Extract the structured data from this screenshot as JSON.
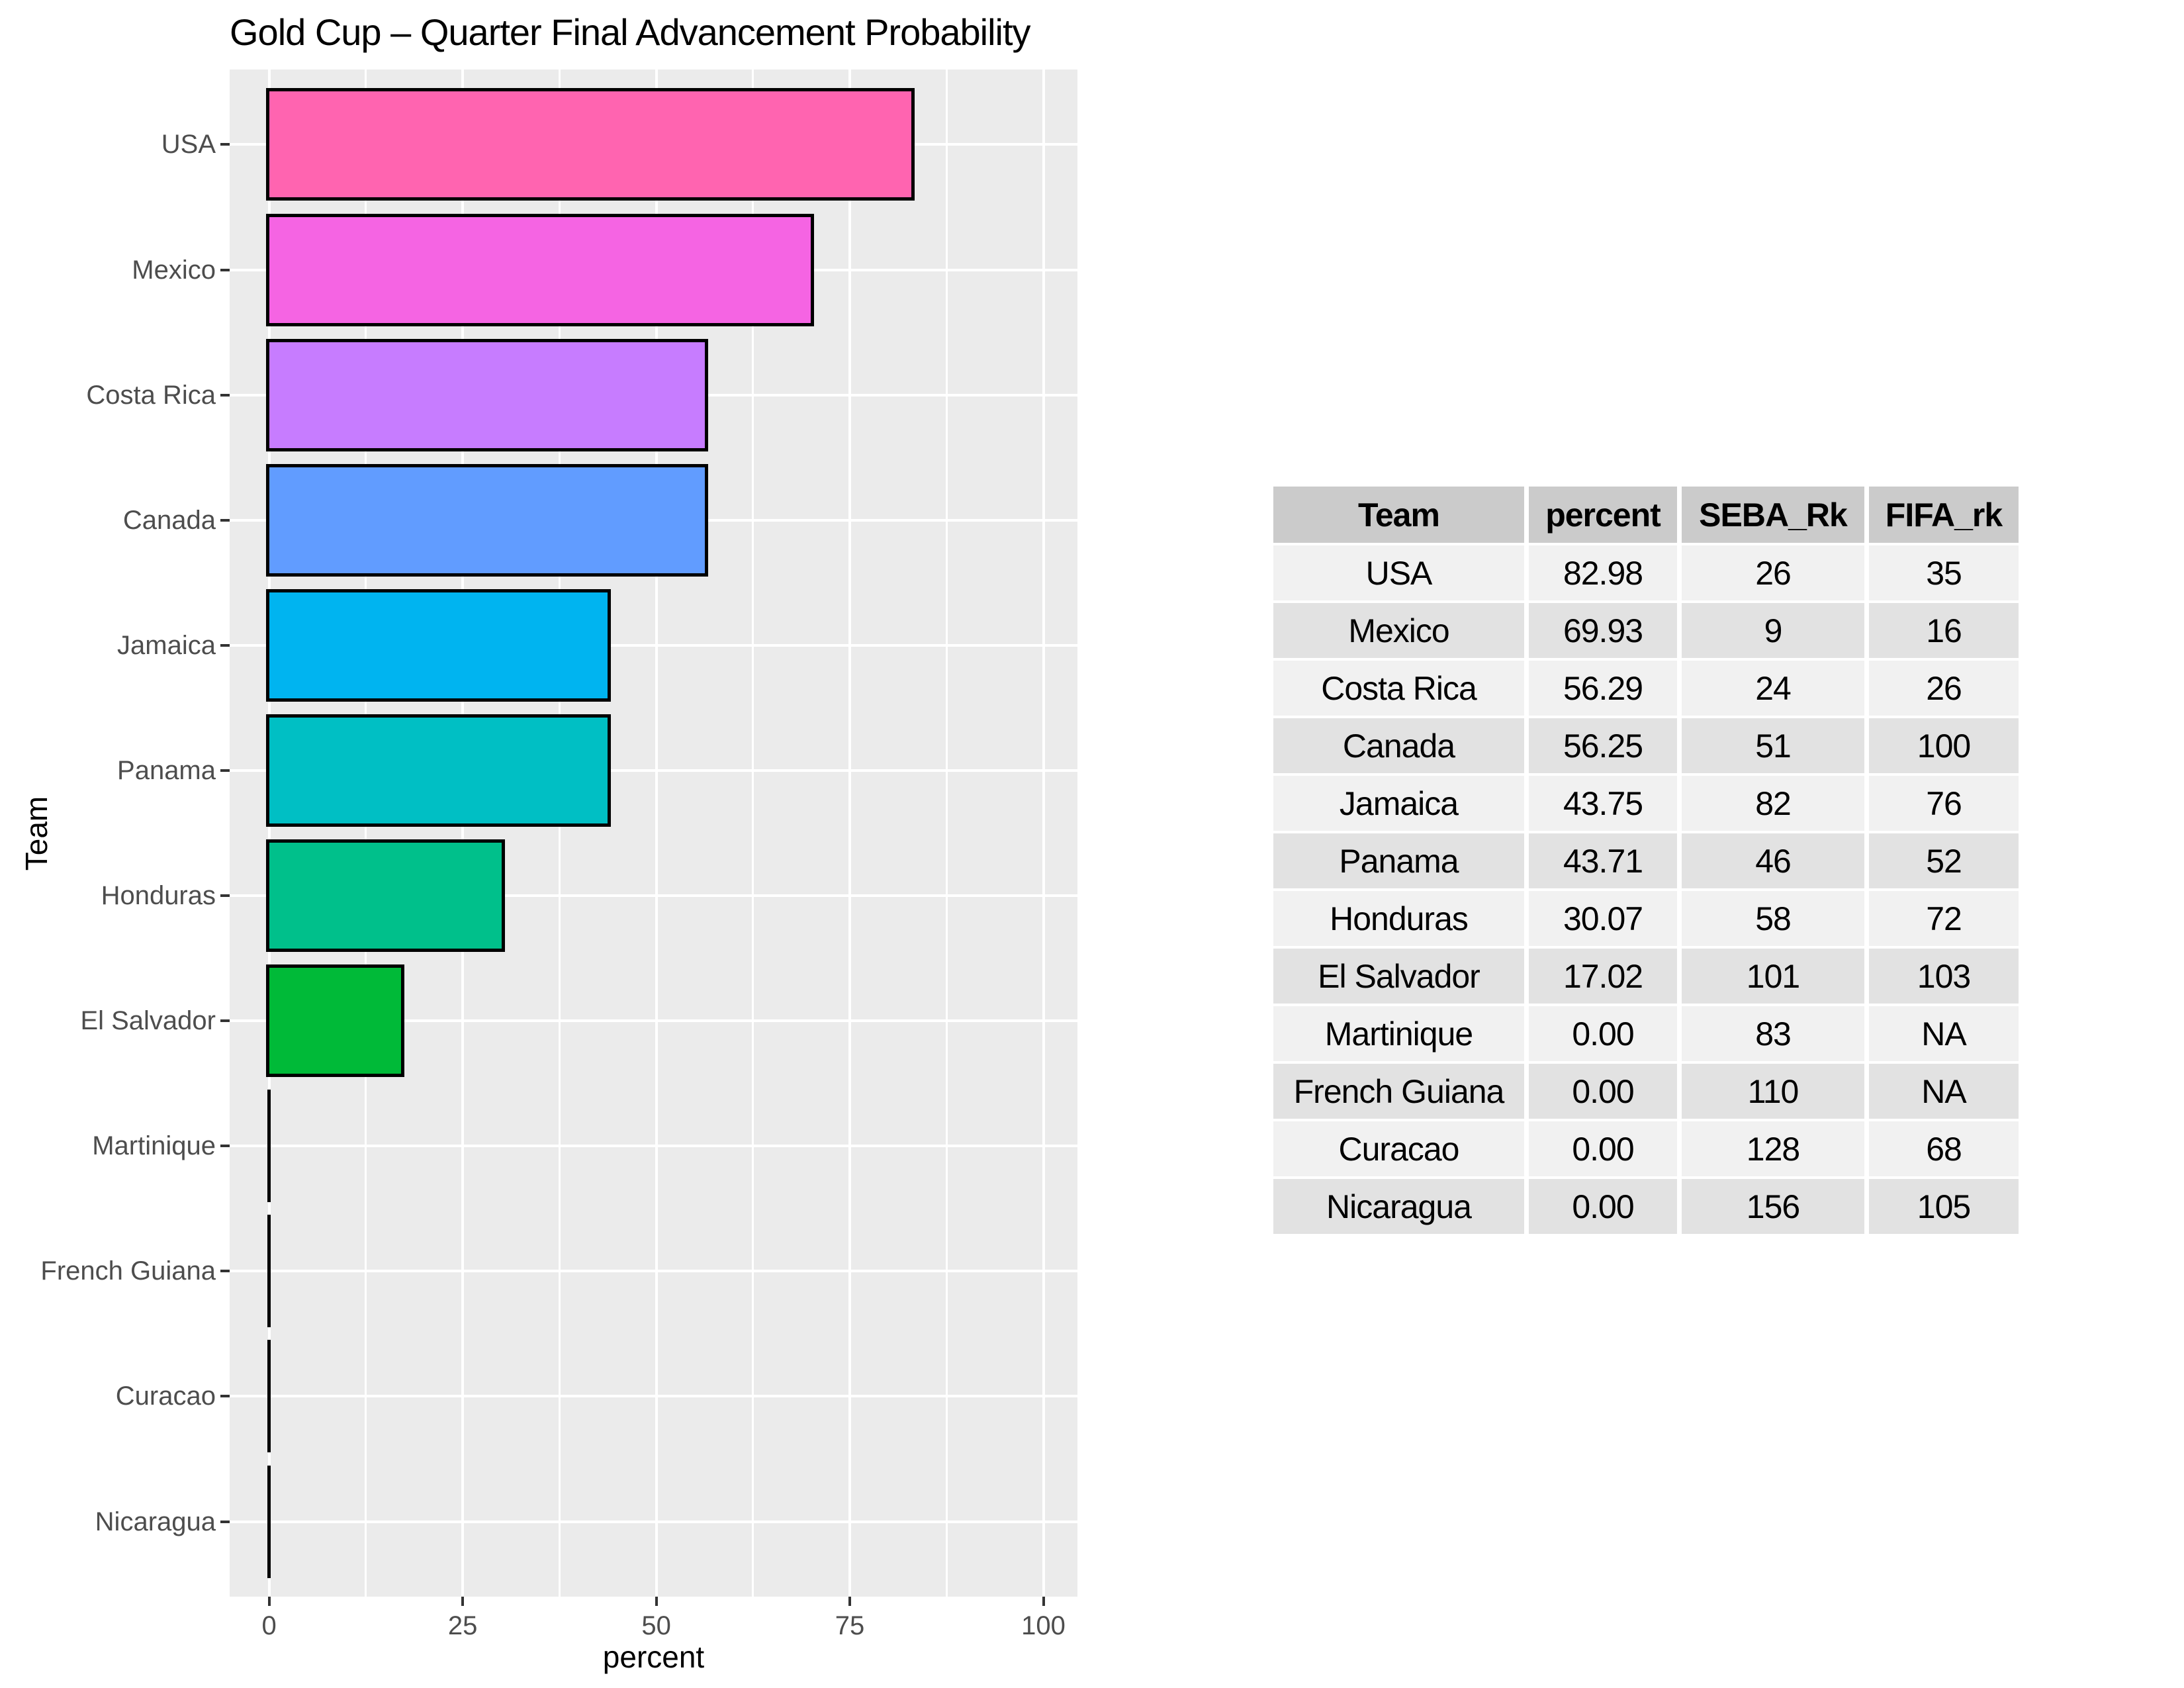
{
  "chart_data": {
    "type": "bar",
    "orientation": "horizontal",
    "title": "Gold Cup – Quarter Final Advancement Probability",
    "xlabel": "percent",
    "ylabel": "Team",
    "categories": [
      "USA",
      "Mexico",
      "Costa Rica",
      "Canada",
      "Jamaica",
      "Panama",
      "Honduras",
      "El Salvador",
      "Martinique",
      "French Guiana",
      "Curacao",
      "Nicaragua"
    ],
    "values": [
      82.98,
      69.93,
      56.29,
      56.25,
      43.75,
      43.71,
      30.07,
      17.02,
      0,
      0,
      0,
      0
    ],
    "bar_colors": [
      "#FF64B0",
      "#F564E3",
      "#C77CFF",
      "#619CFF",
      "#00B4F0",
      "#00BFC4",
      "#00C08B",
      "#00BA38",
      "#7CAE00",
      "#B79F00",
      "#DE8C00",
      "#F8766D"
    ],
    "bar_border_color": "#000000",
    "x_ticks": [
      0,
      25,
      50,
      75,
      100
    ],
    "x_minor_ticks": [
      12.5,
      37.5,
      62.5,
      87.5
    ],
    "xlim": [
      -5.1,
      104.4
    ],
    "grid": true,
    "panel_bg": "#EBEBEB",
    "grid_color": "#FFFFFF",
    "tick_color": "#333333",
    "tick_label_color": "#4D4D4D",
    "legend": "none"
  },
  "table": {
    "headers": [
      "Team",
      "percent",
      "SEBA_Rk",
      "FIFA_rk"
    ],
    "rows": [
      [
        "USA",
        "82.98",
        "26",
        "35"
      ],
      [
        "Mexico",
        "69.93",
        "9",
        "16"
      ],
      [
        "Costa Rica",
        "56.29",
        "24",
        "26"
      ],
      [
        "Canada",
        "56.25",
        "51",
        "100"
      ],
      [
        "Jamaica",
        "43.75",
        "82",
        "76"
      ],
      [
        "Panama",
        "43.71",
        "46",
        "52"
      ],
      [
        "Honduras",
        "30.07",
        "58",
        "72"
      ],
      [
        "El Salvador",
        "17.02",
        "101",
        "103"
      ],
      [
        "Martinique",
        "0.00",
        "83",
        "NA"
      ],
      [
        "French Guiana",
        "0.00",
        "110",
        "NA"
      ],
      [
        "Curacao",
        "0.00",
        "128",
        "68"
      ],
      [
        "Nicaragua",
        "0.00",
        "156",
        "105"
      ]
    ],
    "header_bg": "#CBCBCB",
    "row_bg_odd": "#F1F1F1",
    "row_bg_even": "#E2E2E2"
  }
}
